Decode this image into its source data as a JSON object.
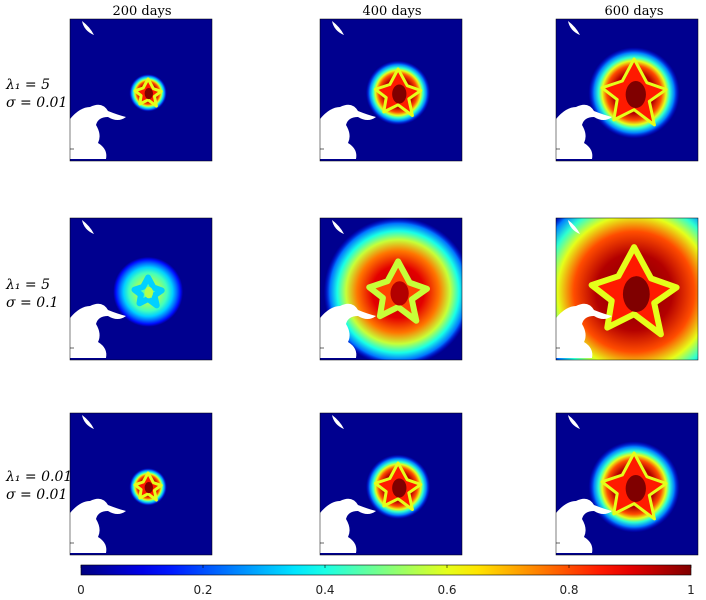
{
  "figure": {
    "col_titles": [
      "200 days",
      "400 days",
      "600 days"
    ],
    "row_labels": [
      {
        "lambda": "λ₁ = 5",
        "sigma": "σ = 0.01"
      },
      {
        "lambda": "λ₁ = 5",
        "sigma": "σ = 0.1"
      },
      {
        "lambda": "λ₁ = 0.01",
        "sigma": "σ = 0.01"
      }
    ]
  },
  "chart_data": {
    "type": "heatmap",
    "layout": "3x3 grid of tumor-density maps",
    "columns": [
      "200 days",
      "400 days",
      "600 days"
    ],
    "rows": [
      {
        "lambda1": 5,
        "sigma": 0.01
      },
      {
        "lambda1": 5,
        "sigma": 0.1
      },
      {
        "lambda1": 0.01,
        "sigma": 0.01
      }
    ],
    "colorbar": {
      "colormap": "jet",
      "range": [
        0,
        1
      ],
      "ticks": [
        0,
        0.2,
        0.4,
        0.6,
        0.8,
        1
      ],
      "tick_labels": [
        "0",
        "0.2",
        "0.4",
        "0.6",
        "0.8",
        "1"
      ]
    },
    "panels": [
      {
        "row": 0,
        "col": 0,
        "peak_value": 1.0,
        "relative_size": 0.35,
        "spread": "small"
      },
      {
        "row": 0,
        "col": 1,
        "peak_value": 1.0,
        "relative_size": 0.6,
        "spread": "small"
      },
      {
        "row": 0,
        "col": 2,
        "peak_value": 1.0,
        "relative_size": 0.85,
        "spread": "small"
      },
      {
        "row": 1,
        "col": 0,
        "peak_value": 0.55,
        "relative_size": 0.4,
        "spread": "large"
      },
      {
        "row": 1,
        "col": 1,
        "peak_value": 0.95,
        "relative_size": 0.85,
        "spread": "large"
      },
      {
        "row": 1,
        "col": 2,
        "peak_value": 1.0,
        "relative_size": 1.25,
        "spread": "large"
      },
      {
        "row": 2,
        "col": 0,
        "peak_value": 1.0,
        "relative_size": 0.35,
        "spread": "small"
      },
      {
        "row": 2,
        "col": 1,
        "peak_value": 1.0,
        "relative_size": 0.6,
        "spread": "small"
      },
      {
        "row": 2,
        "col": 2,
        "peak_value": 1.0,
        "relative_size": 0.85,
        "spread": "small"
      }
    ],
    "background_color": "#00008f",
    "obstacle_color": "#ffffff"
  }
}
